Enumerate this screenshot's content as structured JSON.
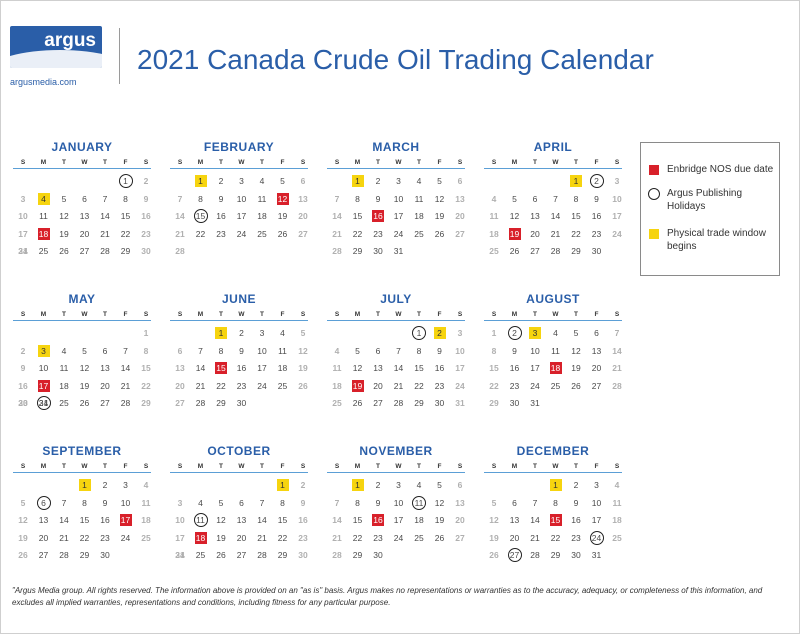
{
  "header": {
    "logo_text": "argus",
    "logo_url": "argusmedia.com",
    "title": "2021 Canada Crude Oil Trading Calendar"
  },
  "weekday_headers": [
    "S",
    "M",
    "T",
    "W",
    "T",
    "F",
    "S"
  ],
  "months": [
    {
      "name": "JANUARY",
      "start_dow": 5,
      "days": 31,
      "nos": [
        18
      ],
      "holidays": [
        1
      ],
      "physical": [
        4
      ]
    },
    {
      "name": "FEBRUARY",
      "start_dow": 1,
      "days": 28,
      "nos": [
        12
      ],
      "holidays": [
        15
      ],
      "physical": [
        1
      ]
    },
    {
      "name": "MARCH",
      "start_dow": 1,
      "days": 31,
      "nos": [
        16
      ],
      "holidays": [],
      "physical": [
        1
      ]
    },
    {
      "name": "APRIL",
      "start_dow": 4,
      "days": 30,
      "nos": [
        19
      ],
      "holidays": [
        2
      ],
      "physical": [
        1
      ]
    },
    {
      "name": "MAY",
      "start_dow": 6,
      "days": 31,
      "nos": [
        17
      ],
      "holidays": [
        24
      ],
      "physical": [
        3
      ]
    },
    {
      "name": "JUNE",
      "start_dow": 2,
      "days": 30,
      "nos": [
        15
      ],
      "holidays": [],
      "physical": [
        1
      ]
    },
    {
      "name": "JULY",
      "start_dow": 4,
      "days": 31,
      "nos": [
        19
      ],
      "holidays": [
        1
      ],
      "physical": [
        2
      ]
    },
    {
      "name": "AUGUST",
      "start_dow": 0,
      "days": 31,
      "nos": [
        18
      ],
      "holidays": [
        2
      ],
      "physical": [
        3
      ]
    },
    {
      "name": "SEPTEMBER",
      "start_dow": 3,
      "days": 30,
      "nos": [
        17
      ],
      "holidays": [
        6
      ],
      "physical": [
        1
      ]
    },
    {
      "name": "OCTOBER",
      "start_dow": 5,
      "days": 31,
      "nos": [
        18
      ],
      "holidays": [
        11
      ],
      "physical": [
        1
      ]
    },
    {
      "name": "NOVEMBER",
      "start_dow": 1,
      "days": 30,
      "nos": [
        16
      ],
      "holidays": [
        11
      ],
      "physical": [
        1
      ]
    },
    {
      "name": "DECEMBER",
      "start_dow": 3,
      "days": 31,
      "nos": [
        15
      ],
      "holidays": [
        24,
        27
      ],
      "physical": [
        1
      ]
    }
  ],
  "legend": {
    "nos_label": "Enbridge NOS due date",
    "holiday_label": "Argus Publishing Holidays",
    "physical_label": "Physical trade window begins",
    "nos_color": "#d8202a",
    "physical_color": "#f6d40f"
  },
  "footer": "\"Argus Media group. All rights reserved. The information above is provided on an \"as is\" basis. Argus makes no representations or warranties as to the accuracy, adequacy, or completeness of this information, and excludes all implied warranties, representations and conditions, including fitness for any particular purpose."
}
